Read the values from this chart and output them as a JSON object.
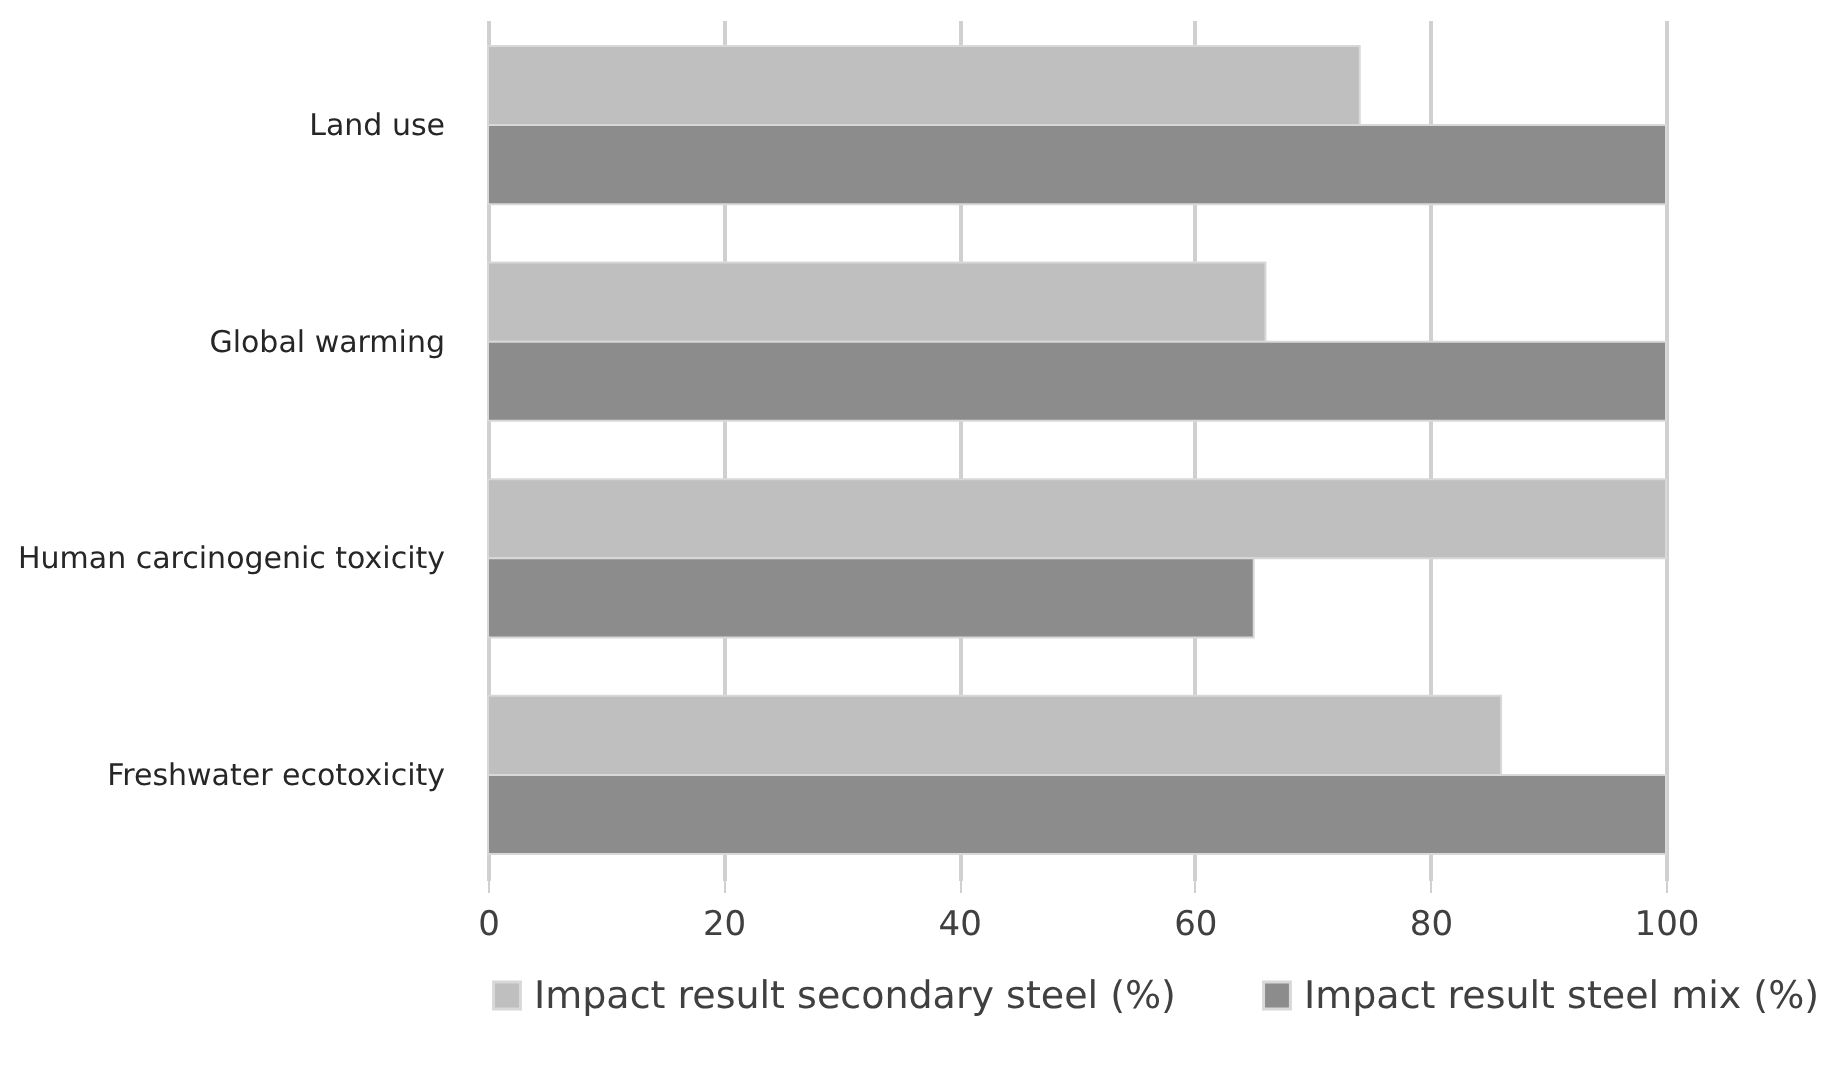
{
  "chart_data": {
    "type": "bar",
    "orientation": "horizontal",
    "categories": [
      "Land use",
      "Global warming",
      "Human carcinogenic toxicity",
      "Freshwater ecotoxicity"
    ],
    "series": [
      {
        "name": "Impact result secondary steel (%)",
        "color": "#bfbfbf",
        "values": [
          74,
          66,
          100,
          86
        ]
      },
      {
        "name": "Impact result steel mix (%)",
        "color": "#8c8c8c",
        "values": [
          100,
          100,
          65,
          100
        ]
      }
    ],
    "xlim": [
      0,
      100
    ],
    "xticks": [
      0,
      20,
      40,
      60,
      80,
      100
    ],
    "grid": "x",
    "legend": "bottom"
  }
}
